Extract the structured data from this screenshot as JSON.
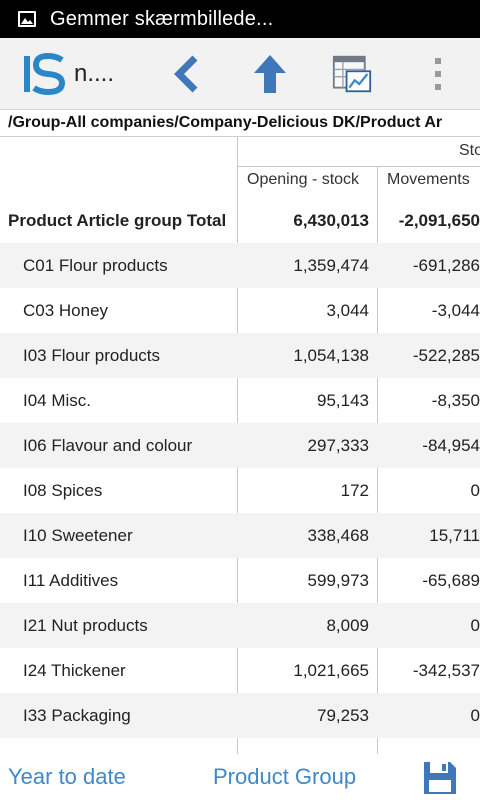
{
  "status_bar": {
    "notification_text": "Gemmer skærmbillede..."
  },
  "toolbar": {
    "logo_text": "IS",
    "title": "n...."
  },
  "path": "/Group-All companies/Company-Delicious DK/Product Ar",
  "table": {
    "group_header": "Sto",
    "columns": [
      "Opening - stock",
      "Movements"
    ],
    "rows": [
      {
        "name": "Product Article group Total",
        "opening": "6,430,013",
        "movements": "-2,091,650"
      },
      {
        "name": "C01 Flour products",
        "opening": "1,359,474",
        "movements": "-691,286"
      },
      {
        "name": "C03 Honey",
        "opening": "3,044",
        "movements": "-3,044"
      },
      {
        "name": "I03 Flour products",
        "opening": "1,054,138",
        "movements": "-522,285"
      },
      {
        "name": "I04 Misc.",
        "opening": "95,143",
        "movements": "-8,350"
      },
      {
        "name": "I06 Flavour and colour",
        "opening": "297,333",
        "movements": "-84,954"
      },
      {
        "name": "I08 Spices",
        "opening": "172",
        "movements": "0"
      },
      {
        "name": "I10 Sweetener",
        "opening": "338,468",
        "movements": "15,711"
      },
      {
        "name": "I11 Additives",
        "opening": "599,973",
        "movements": "-65,689"
      },
      {
        "name": "I21 Nut products",
        "opening": "8,009",
        "movements": "0"
      },
      {
        "name": "I24 Thickener",
        "opening": "1,021,665",
        "movements": "-342,537"
      },
      {
        "name": "I33 Packaging",
        "opening": "79,253",
        "movements": "0"
      }
    ]
  },
  "bottom_bar": {
    "period_label": "Year to date",
    "dimension_label": "Product Group"
  },
  "icons": {
    "back": "chevron-left-icon",
    "up": "arrow-up-icon",
    "chart": "table-chart-icon",
    "menu": "overflow-menu-icon",
    "save": "floppy-disk-icon"
  },
  "colors": {
    "accent": "#3f88c9",
    "logo": "#2a86c8"
  }
}
